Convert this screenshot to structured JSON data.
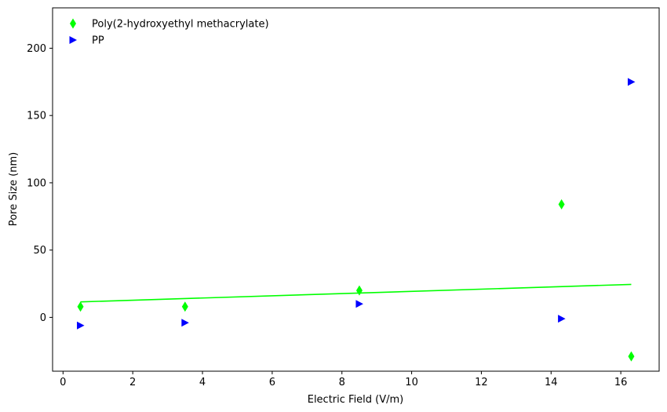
{
  "chart_data": {
    "type": "scatter",
    "title": "",
    "xlabel": "Electric Field (V/m)",
    "ylabel": "Pore Size (nm)",
    "xlim": [
      -0.3,
      17.1
    ],
    "ylim": [
      -40,
      230
    ],
    "xticks": [
      0,
      2,
      4,
      6,
      8,
      10,
      12,
      14,
      16
    ],
    "yticks": [
      0,
      50,
      100,
      150,
      200
    ],
    "grid": false,
    "legend_position": "top-left",
    "series": [
      {
        "name": "Poly(2-hydroxyethyl methacrylate)",
        "marker": "thin-diamond",
        "color": "#00ff00",
        "x": [
          0.5,
          3.5,
          8.5,
          14.3,
          16.3
        ],
        "y": [
          8,
          8,
          20,
          84,
          -29
        ]
      },
      {
        "name": "PP",
        "marker": "triangle-right",
        "color": "#0000ff",
        "x": [
          0.5,
          3.5,
          8.5,
          14.3,
          16.3
        ],
        "y": [
          -6,
          -4,
          10,
          -1,
          175
        ]
      }
    ],
    "fit_line": {
      "series": "Poly(2-hydroxyethyl methacrylate)",
      "color": "#00ff00",
      "x": [
        0.5,
        16.3
      ],
      "y": [
        11.5,
        24.5
      ]
    }
  }
}
